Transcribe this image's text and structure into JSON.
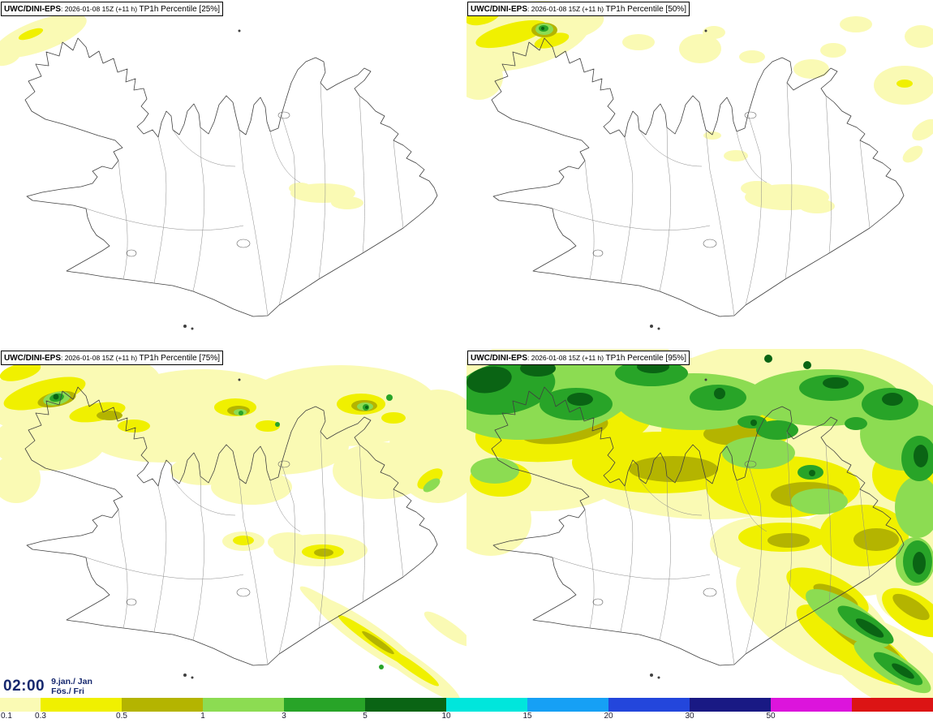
{
  "panels": [
    {
      "model": "UWC/DINI-EPS",
      "run": ": 2026-01-08 15Z (+11 h) ",
      "param": "TP1h Percentile [25%]",
      "percentile": "25%"
    },
    {
      "model": "UWC/DINI-EPS",
      "run": ": 2026-01-08 15Z (+11 h) ",
      "param": "TP1h Percentile [50%]",
      "percentile": "50%"
    },
    {
      "model": "UWC/DINI-EPS",
      "run": ": 2026-01-08 15Z (+11 h) ",
      "param": "TP1h Percentile [75%]",
      "percentile": "75%"
    },
    {
      "model": "UWC/DINI-EPS",
      "run": ": 2026-01-08 15Z (+11 h) ",
      "param": "TP1h Percentile [95%]",
      "percentile": "95%"
    }
  ],
  "time": {
    "clock": "02:00",
    "date": "9.jan./ Jan",
    "day": "Fös./ Fri"
  },
  "colorbar": {
    "segments": [
      {
        "label": "0.1",
        "color": "#FAFAB4",
        "w": 0.5
      },
      {
        "label": "0.3",
        "color": "#F0F000",
        "w": 1
      },
      {
        "label": "0.5",
        "color": "#B4B400",
        "w": 1
      },
      {
        "label": "1",
        "color": "#8CDC52",
        "w": 1
      },
      {
        "label": "3",
        "color": "#28A428",
        "w": 1
      },
      {
        "label": "5",
        "color": "#0A6414",
        "w": 1
      },
      {
        "label": "10",
        "color": "#00E6DC",
        "w": 1
      },
      {
        "label": "15",
        "color": "#16A0F5",
        "w": 1
      },
      {
        "label": "20",
        "color": "#2346DC",
        "w": 1
      },
      {
        "label": "30",
        "color": "#191984",
        "w": 1
      },
      {
        "label": "50",
        "color": "#DC14DC",
        "w": 1
      },
      {
        "label": "",
        "color": "#DC1414",
        "w": 1
      }
    ]
  },
  "map_colors": {
    "coastline": "#404040",
    "inner_borders": "#8a8a8a",
    "sea_land": "#ffffff"
  }
}
